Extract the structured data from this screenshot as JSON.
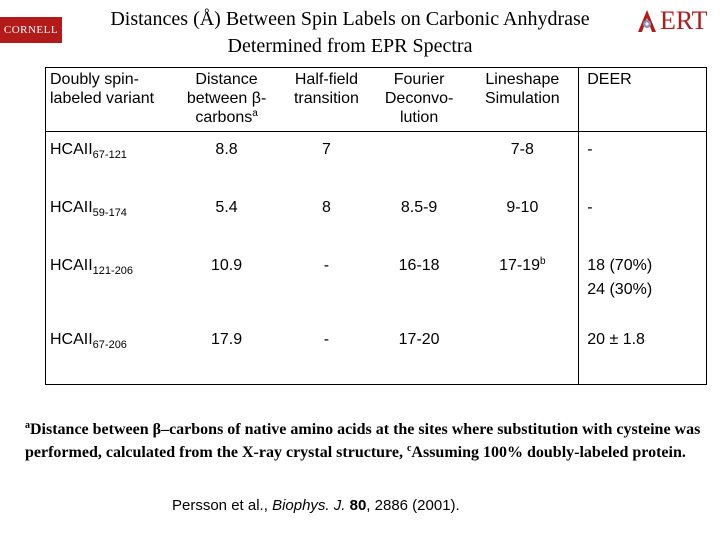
{
  "logo_left": {
    "text": "CORNELL"
  },
  "logo_right": {
    "text": "ERT"
  },
  "title": {
    "line1": "Distances (Å) Between Spin Labels on Carbonic Anhydrase",
    "line2": "Determined from EPR Spectra"
  },
  "table": {
    "headers": {
      "variant": "Doubly spin-labeled variant",
      "distance": "Distance between β-carbons",
      "distance_sup": "a",
      "halffield": "Half-field transition",
      "fourier": "Fourier Deconvo-lution",
      "lineshape": "Lineshape Simulation",
      "deer": "DEER"
    },
    "rows": [
      {
        "name": "HCAII",
        "sites": "67-121",
        "distance": "8.8",
        "halffield": "7",
        "fourier": "",
        "lineshape": "7-8",
        "lineshape_sup": "",
        "deer": "-",
        "deer2": ""
      },
      {
        "name": "HCAII",
        "sites": "59-174",
        "distance": "5.4",
        "halffield": "8",
        "fourier": "8.5-9",
        "lineshape": "9-10",
        "lineshape_sup": "",
        "deer": "-",
        "deer2": ""
      },
      {
        "name": "HCAII",
        "sites": "121-206",
        "distance": "10.9",
        "halffield": "-",
        "fourier": "16-18",
        "lineshape": "17-19",
        "lineshape_sup": "b",
        "deer": "18 (70%)",
        "deer2": "24 (30%)"
      },
      {
        "name": "HCAII",
        "sites": "67-206",
        "distance": "17.9",
        "halffield": "-",
        "fourier": "17-20",
        "lineshape": "",
        "lineshape_sup": "",
        "deer": "20 ± 1.8",
        "deer2": ""
      }
    ]
  },
  "footnote": {
    "sup_a": "a",
    "text_a": "Distance between β–carbons of native amino acids at the sites where substitution with cysteine was performed, calculated from the X-ray crystal structure,",
    "sup_c": "c",
    "text_c": "Assuming 100% doubly-labeled protein."
  },
  "citation": {
    "authors": "Persson et al., ",
    "journal": "Biophys. J.",
    "volume": "80",
    "rest": ", 2886 (2001)."
  },
  "colors": {
    "brand_red": "#b31b1b"
  }
}
